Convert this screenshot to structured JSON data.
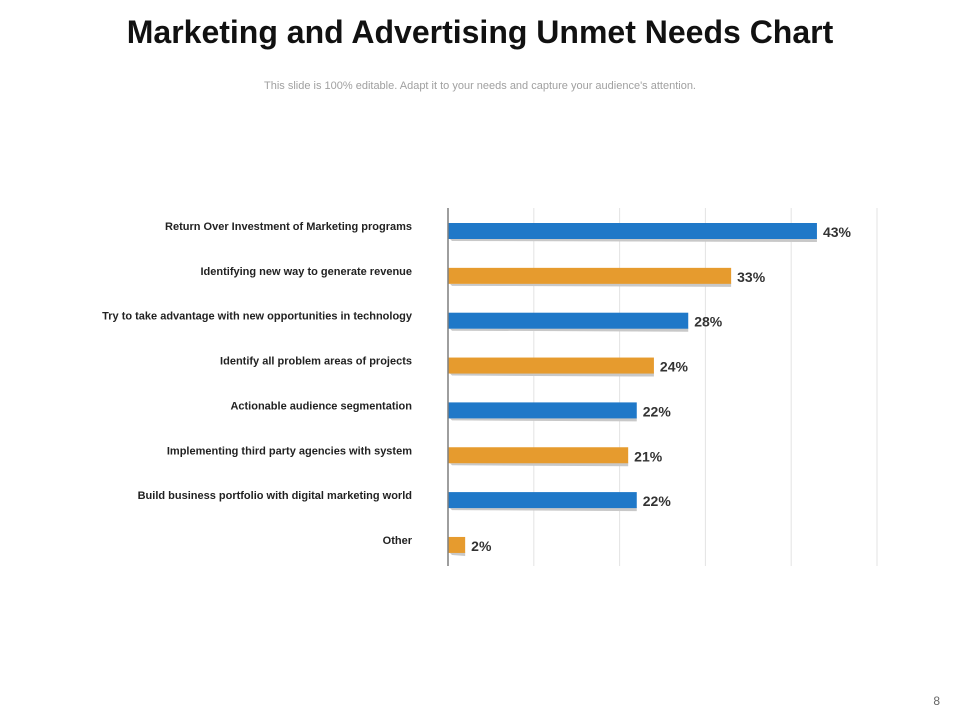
{
  "slide": {
    "title": "Marketing and Advertising Unmet Needs Chart",
    "subtitle": "This slide is 100% editable. Adapt it to your needs and capture your audience's attention.",
    "page_number": "8"
  },
  "chart_data": {
    "type": "bar",
    "orientation": "horizontal",
    "categories": [
      "Return Over Investment of Marketing programs",
      "Identifying  new way to generate revenue",
      "Try to take advantage with new opportunities in technology",
      "Identify all problem areas of projects",
      "Actionable audience segmentation",
      "Implementing third party agencies with system",
      "Build business portfolio with digital marketing world",
      "Other"
    ],
    "values": [
      43,
      33,
      28,
      24,
      22,
      21,
      22,
      2
    ],
    "value_labels": [
      "43%",
      "33%",
      "28%",
      "24%",
      "22%",
      "21%",
      "22%",
      "2%"
    ],
    "unit": "%",
    "xlim": [
      0,
      50
    ],
    "grid": true,
    "colors": [
      "#1f78c8",
      "#e69b2e"
    ],
    "shadow_color": "#c8c8c8",
    "axis_color": "#7f7f7f",
    "grid_color": "#e3e3e3"
  }
}
